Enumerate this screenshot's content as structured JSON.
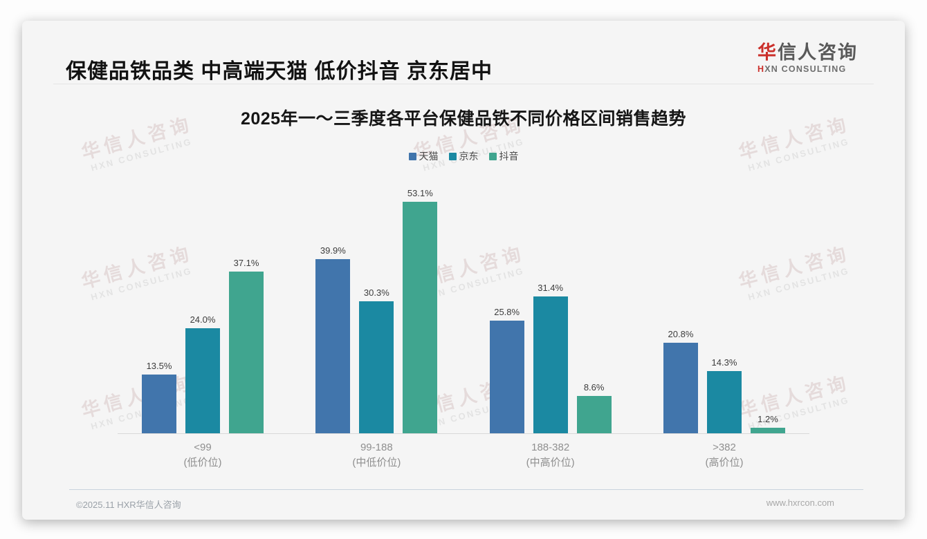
{
  "page": {
    "title": "保健品铁品类 中高端天猫 低价抖音 京东居中",
    "footer_left": "©2025.11 HXR华信人咨询",
    "footer_right": "www.hxrcon.com"
  },
  "logo": {
    "cn_first": "华",
    "cn_rest": "信人咨询",
    "en_first": "H",
    "en_rest": "XN CONSULTING"
  },
  "watermark": {
    "cn": "华信人咨询",
    "en": "HXN CONSULTING"
  },
  "colors": {
    "tmall_blue": "#4175ac",
    "jd_teal": "#1b89a2",
    "douyin_green": "#40a58f",
    "logo_red": "#cb2f2a"
  },
  "chart_data": {
    "type": "bar",
    "title": "2025年一～三季度各平台保健品铁不同价格区间销售趋势",
    "categories": [
      {
        "label": "<99",
        "sub": "(低价位)"
      },
      {
        "label": "99-188",
        "sub": "(中低价位)"
      },
      {
        "label": "188-382",
        "sub": "(中高价位)"
      },
      {
        "label": ">382",
        "sub": "(高价位)"
      }
    ],
    "series": [
      {
        "name": "天猫",
        "color": "#4175ac",
        "values": [
          13.5,
          39.9,
          25.8,
          20.8
        ]
      },
      {
        "name": "京东",
        "color": "#1b89a2",
        "values": [
          24.0,
          30.3,
          31.4,
          14.3
        ]
      },
      {
        "name": "抖音",
        "color": "#40a58f",
        "values": [
          37.1,
          53.1,
          8.6,
          1.2
        ]
      }
    ],
    "unit": "%",
    "value_labels": true,
    "ylim": [
      0,
      57
    ],
    "grid": false,
    "legend_position": "top"
  }
}
